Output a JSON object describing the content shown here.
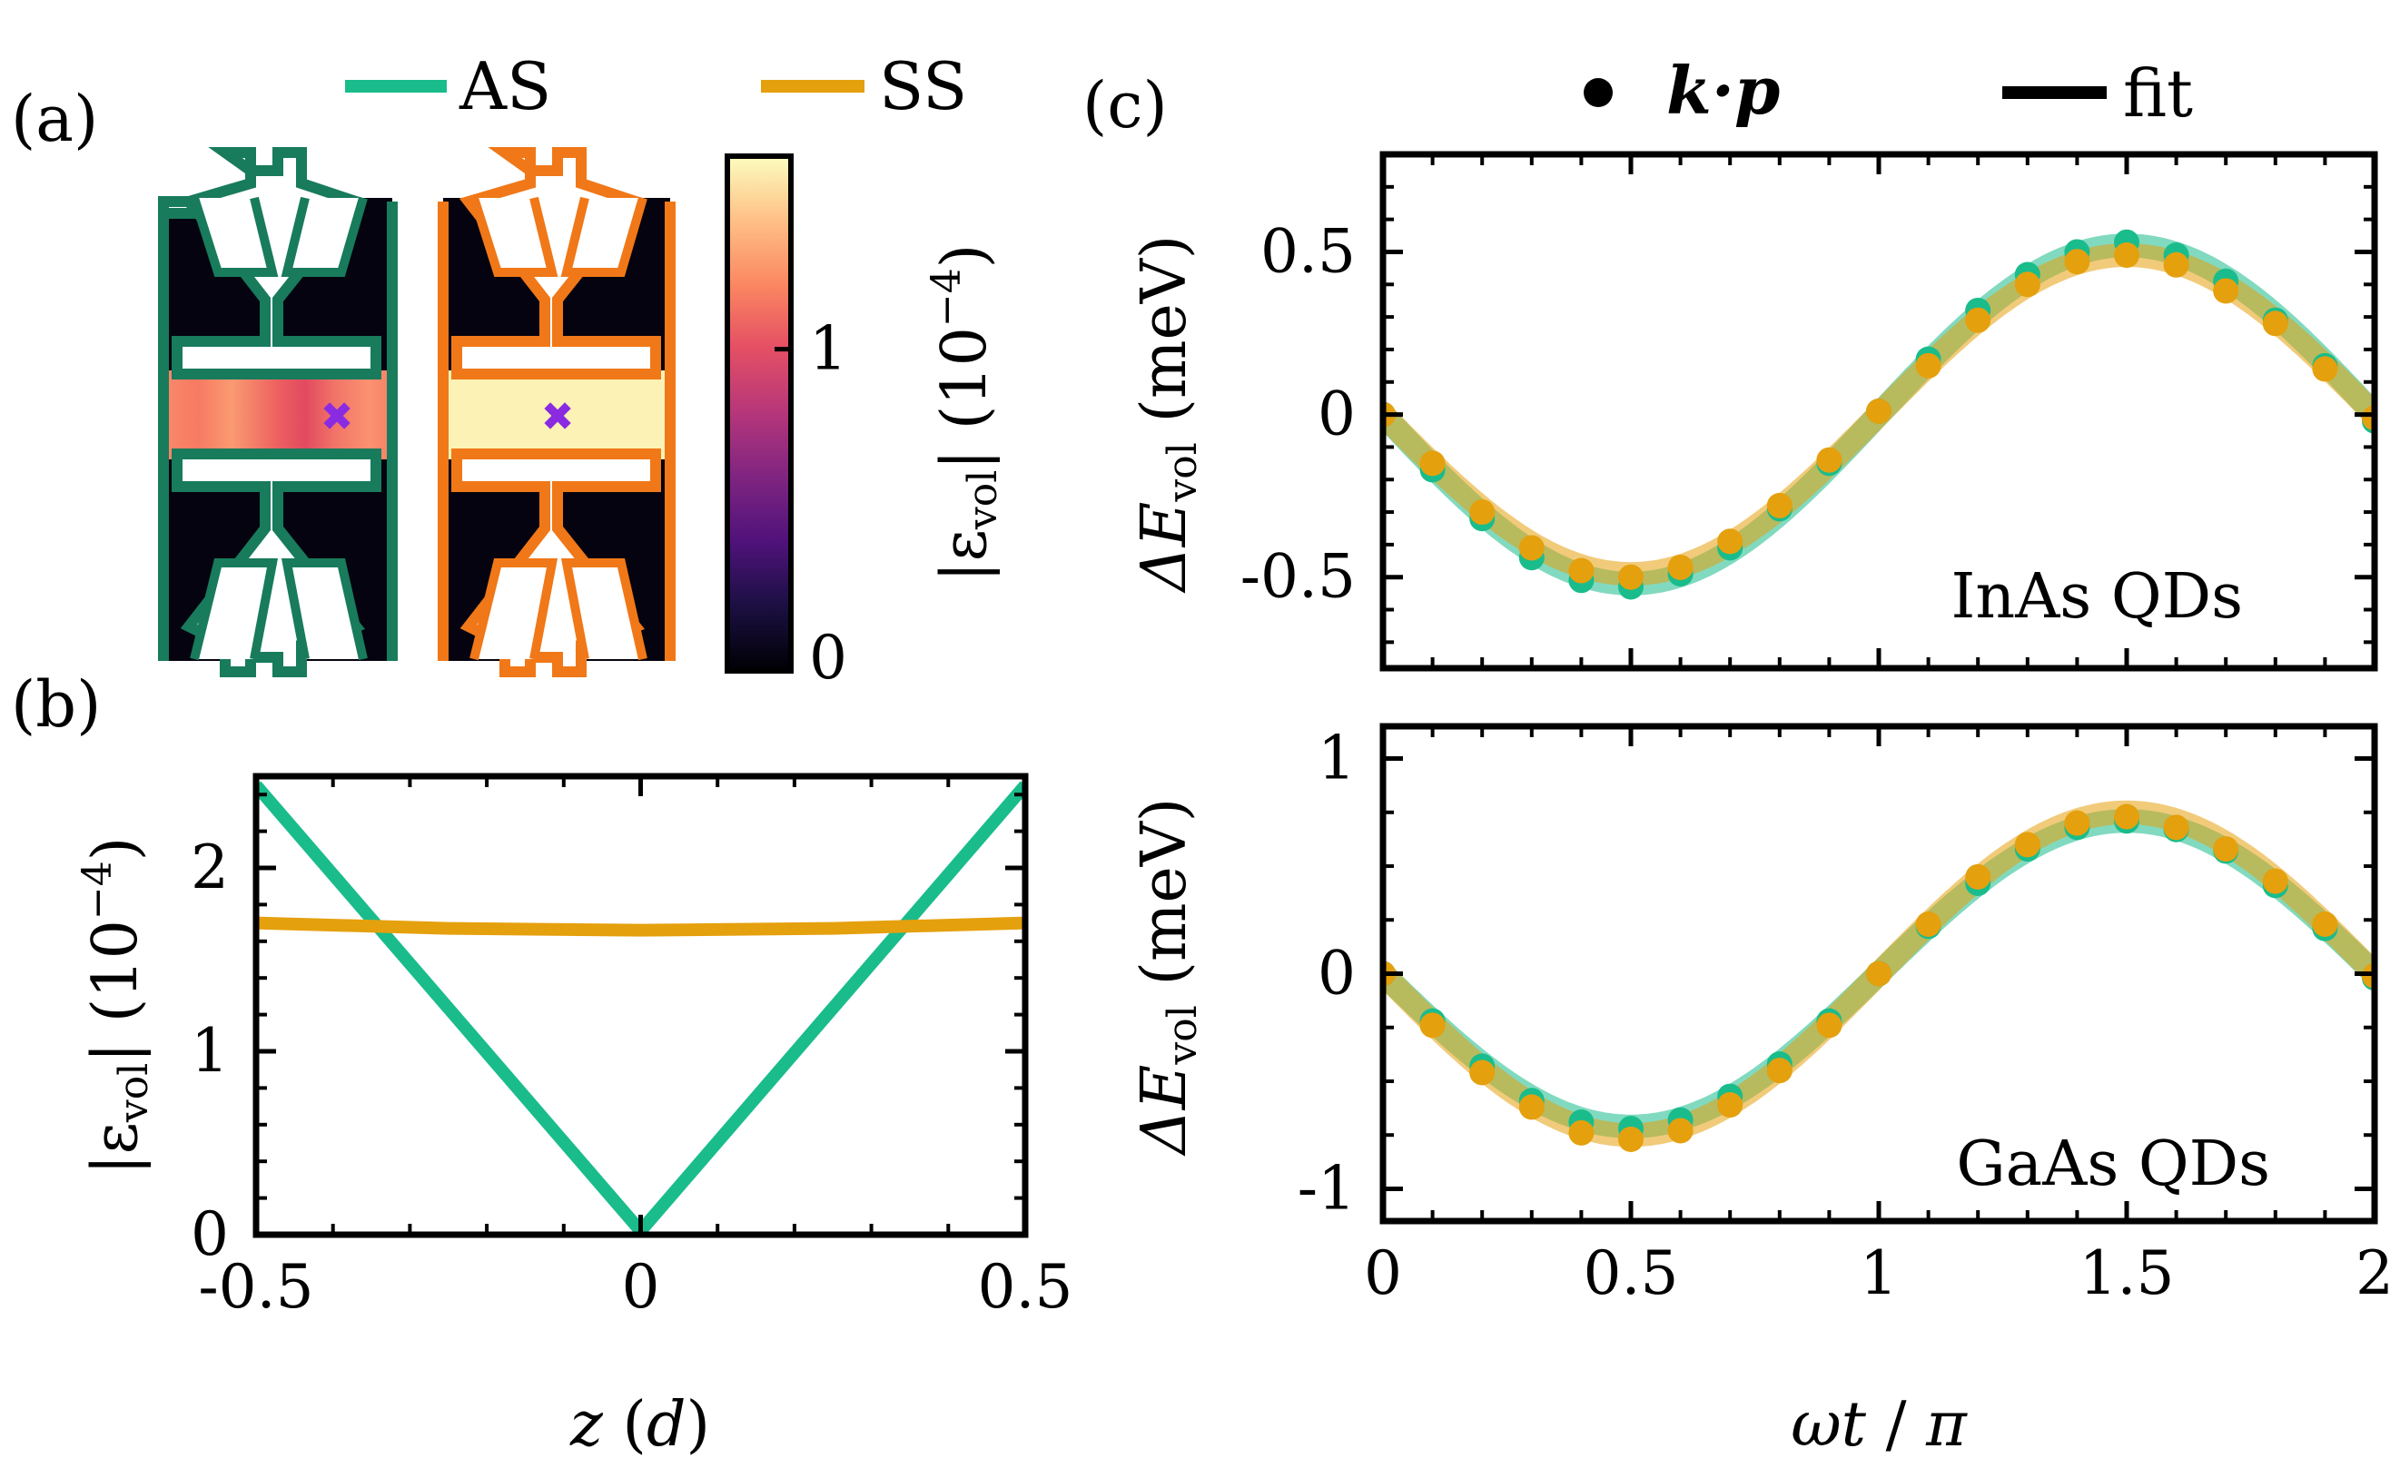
{
  "panel_labels": {
    "a": "(a)",
    "b": "(b)",
    "c": "(c)"
  },
  "colors": {
    "as": "#1ABC8C",
    "ss": "#E5A00D",
    "as_outline": "#187B5C",
    "ss_outline": "#F07818",
    "marker": "#8A2BE2"
  },
  "legend_a": {
    "as": "AS",
    "ss": "SS"
  },
  "legend_c": {
    "kp": "k·p",
    "fit": "fit"
  },
  "colorbar": {
    "label_prefix": "|ε",
    "label_sub": "vol",
    "label_suffix": "| (10",
    "label_exp": "−4",
    "label_close": ")",
    "ticks": [
      {
        "v": 0,
        "t": "0"
      },
      {
        "v": 1,
        "t": "1"
      }
    ],
    "range": [
      0,
      1.6
    ]
  },
  "chart_data": [
    {
      "id": "b",
      "type": "line",
      "title": "",
      "xlabel_var": "z",
      "xlabel_unit": "d",
      "ylabel_prefix": "|ε",
      "ylabel_sub": "vol",
      "ylabel_suffix": "| (10",
      "ylabel_exp": "−4",
      "ylabel_close": ")",
      "xlim": [
        -0.5,
        0.5
      ],
      "ylim": [
        0,
        2.5
      ],
      "xticks": [
        {
          "v": -0.5,
          "t": "-0.5"
        },
        {
          "v": 0,
          "t": "0"
        },
        {
          "v": 0.5,
          "t": "0.5"
        }
      ],
      "yticks": [
        {
          "v": 0,
          "t": "0"
        },
        {
          "v": 1,
          "t": "1"
        },
        {
          "v": 2,
          "t": "2"
        }
      ],
      "series": [
        {
          "name": "AS",
          "x": [
            -0.5,
            0,
            0.5
          ],
          "y": [
            2.45,
            0.02,
            2.45
          ]
        },
        {
          "name": "SS",
          "x": [
            -0.5,
            -0.25,
            0,
            0.25,
            0.5
          ],
          "y": [
            1.7,
            1.67,
            1.66,
            1.67,
            1.7
          ]
        }
      ]
    },
    {
      "id": "c-top",
      "type": "scatter",
      "annotation": "InAs QDs",
      "ylabel_prefix": "ΔE",
      "ylabel_sub": "vol",
      "ylabel_unit": "(meV)",
      "xlim": [
        0,
        2
      ],
      "ylim": [
        -0.78,
        0.8
      ],
      "yticks": [
        {
          "v": -0.5,
          "t": "-0.5"
        },
        {
          "v": 0,
          "t": "0"
        },
        {
          "v": 0.5,
          "t": "0.5"
        }
      ],
      "series": [
        {
          "name": "AS k·p",
          "x": [
            0,
            0.1,
            0.2,
            0.3,
            0.4,
            0.5,
            0.6,
            0.7,
            0.8,
            0.9,
            1.0,
            1.1,
            1.2,
            1.3,
            1.4,
            1.5,
            1.6,
            1.7,
            1.8,
            1.9,
            2.0
          ],
          "y": [
            0,
            -0.17,
            -0.32,
            -0.44,
            -0.51,
            -0.53,
            -0.49,
            -0.41,
            -0.29,
            -0.15,
            0.01,
            0.17,
            0.32,
            0.43,
            0.5,
            0.53,
            0.49,
            0.41,
            0.29,
            0.15,
            -0.02
          ]
        },
        {
          "name": "SS k·p",
          "x": [
            0,
            0.1,
            0.2,
            0.3,
            0.4,
            0.5,
            0.6,
            0.7,
            0.8,
            0.9,
            1.0,
            1.1,
            1.2,
            1.3,
            1.4,
            1.5,
            1.6,
            1.7,
            1.8,
            1.9,
            2.0
          ],
          "y": [
            0,
            -0.15,
            -0.3,
            -0.41,
            -0.48,
            -0.5,
            -0.47,
            -0.39,
            -0.28,
            -0.14,
            0.01,
            0.15,
            0.29,
            0.4,
            0.47,
            0.49,
            0.46,
            0.38,
            0.28,
            0.14,
            -0.01
          ]
        },
        {
          "name": "AS fit",
          "amplitude": 0.52
        },
        {
          "name": "SS fit",
          "amplitude": 0.49
        }
      ]
    },
    {
      "id": "c-bottom",
      "type": "scatter",
      "annotation": "GaAs QDs",
      "xlabel_var": "ωt",
      "xlabel_den": "π",
      "ylabel_prefix": "ΔE",
      "ylabel_sub": "vol",
      "ylabel_unit": "(meV)",
      "xlim": [
        0,
        2
      ],
      "ylim": [
        -1.15,
        1.15
      ],
      "xticks": [
        {
          "v": 0,
          "t": "0"
        },
        {
          "v": 0.5,
          "t": "0.5"
        },
        {
          "v": 1,
          "t": "1"
        },
        {
          "v": 1.5,
          "t": "1.5"
        },
        {
          "v": 2,
          "t": "2"
        }
      ],
      "yticks": [
        {
          "v": -1,
          "t": "-1"
        },
        {
          "v": 0,
          "t": "0"
        },
        {
          "v": 1,
          "t": "1"
        }
      ],
      "series": [
        {
          "name": "AS k·p",
          "x": [
            0,
            0.1,
            0.2,
            0.3,
            0.4,
            0.5,
            0.6,
            0.7,
            0.8,
            0.9,
            1.0,
            1.1,
            1.2,
            1.3,
            1.4,
            1.5,
            1.6,
            1.7,
            1.8,
            1.9,
            2.0
          ],
          "y": [
            0,
            -0.22,
            -0.43,
            -0.59,
            -0.69,
            -0.72,
            -0.68,
            -0.57,
            -0.42,
            -0.22,
            0.0,
            0.22,
            0.42,
            0.58,
            0.68,
            0.71,
            0.67,
            0.57,
            0.41,
            0.21,
            -0.02
          ]
        },
        {
          "name": "SS k·p",
          "x": [
            0,
            0.1,
            0.2,
            0.3,
            0.4,
            0.5,
            0.6,
            0.7,
            0.8,
            0.9,
            1.0,
            1.1,
            1.2,
            1.3,
            1.4,
            1.5,
            1.6,
            1.7,
            1.8,
            1.9,
            2.0
          ],
          "y": [
            0,
            -0.24,
            -0.46,
            -0.62,
            -0.74,
            -0.77,
            -0.73,
            -0.61,
            -0.45,
            -0.24,
            0.0,
            0.23,
            0.45,
            0.6,
            0.7,
            0.73,
            0.68,
            0.58,
            0.43,
            0.23,
            -0.01
          ]
        },
        {
          "name": "AS fit",
          "amplitude": 0.71
        },
        {
          "name": "SS fit",
          "amplitude": 0.75
        }
      ]
    }
  ]
}
